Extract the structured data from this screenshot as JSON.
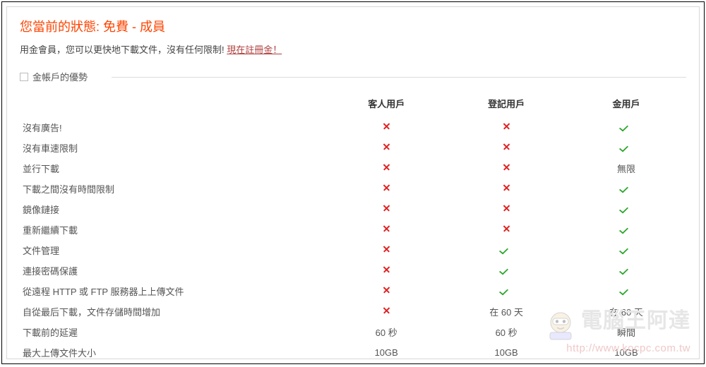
{
  "status": {
    "title": "您當前的狀態: 免費 - 成員",
    "subtitle_prefix": "用金會員，您可以更快地下載文件，沒有任何限制! ",
    "register_link": "現在註冊金！"
  },
  "section": {
    "label": "金帳戶的優勢"
  },
  "columns": {
    "feature": "",
    "guest": "客人用戶",
    "registered": "登記用戶",
    "gold": "金用戶"
  },
  "rows": [
    {
      "label": "沒有廣告!",
      "guest": "x",
      "registered": "x",
      "gold": "v"
    },
    {
      "label": "沒有車速限制",
      "guest": "x",
      "registered": "x",
      "gold": "v"
    },
    {
      "label": "並行下載",
      "guest": "x",
      "registered": "x",
      "gold": "無限"
    },
    {
      "label": "下載之間沒有時間限制",
      "guest": "x",
      "registered": "x",
      "gold": "v"
    },
    {
      "label": "鏡像鏈接",
      "guest": "x",
      "registered": "x",
      "gold": "v"
    },
    {
      "label": "重新繼續下載",
      "guest": "x",
      "registered": "x",
      "gold": "v"
    },
    {
      "label": "文件管理",
      "guest": "x",
      "registered": "v",
      "gold": "v"
    },
    {
      "label": "連接密碼保護",
      "guest": "x",
      "registered": "v",
      "gold": "v"
    },
    {
      "label": "從遠程 HTTP 或 FTP 服務器上上傳文件",
      "guest": "x",
      "registered": "v",
      "gold": "v"
    },
    {
      "label": "自從最后下載，文件存儲時間增加",
      "guest": "x",
      "registered": "在 60 天",
      "gold": "在 60 天"
    },
    {
      "label": "下載前的延遲",
      "guest": "60 秒",
      "registered": "60 秒",
      "gold": "瞬間"
    },
    {
      "label": "最大上傳文件大小",
      "guest": "10GB",
      "registered": "10GB",
      "gold": "10GB"
    }
  ],
  "watermark": {
    "text": "電腦王阿達",
    "url": "http://www.kocpc.com.tw"
  },
  "style": {
    "accent_color": "#ff4400",
    "link_color": "#b04040",
    "x_color": "#e02020",
    "v_color": "#2ea82e",
    "border_color": "#d8d8d8",
    "text_color": "#555555",
    "watermark_text_color": "#e6e6e6",
    "watermark_url_color": "#f0c8c8",
    "font_size_title": 18,
    "font_size_body": 13
  }
}
